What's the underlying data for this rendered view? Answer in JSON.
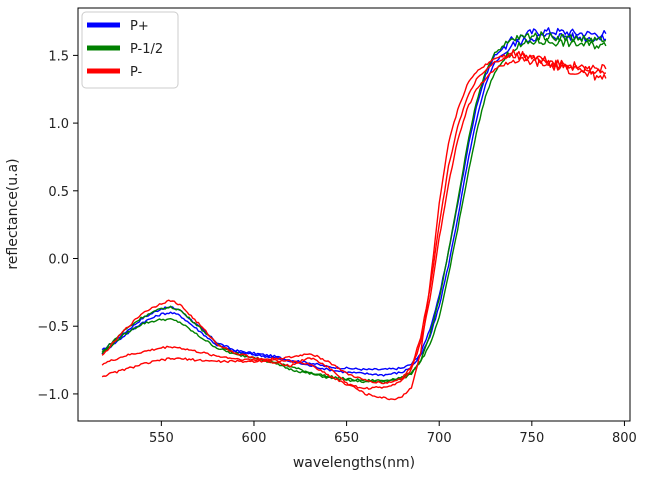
{
  "chart_data": {
    "type": "line",
    "title": "",
    "xlabel": "wavelengths(nm)",
    "ylabel": "reflectance(u.a)",
    "xlim": [
      505,
      803
    ],
    "ylim": [
      -1.2,
      1.85
    ],
    "xticks": [
      550,
      600,
      650,
      700,
      750,
      800
    ],
    "yticks": [
      -1.0,
      -0.5,
      0.0,
      0.5,
      1.0,
      1.5
    ],
    "grid": false,
    "legend_position": "top-left",
    "legend": [
      {
        "name": "P+",
        "color": "#0000ff"
      },
      {
        "name": "P-1/2",
        "color": "#008000"
      },
      {
        "name": "P-",
        "color": "#ff0000"
      }
    ],
    "series": [
      {
        "name": "P+",
        "color": "#0000ff",
        "x": [
          518,
          530,
          540,
          550,
          555,
          560,
          570,
          580,
          590,
          600,
          610,
          620,
          630,
          640,
          650,
          660,
          670,
          680,
          685,
          690,
          695,
          700,
          705,
          710,
          715,
          720,
          725,
          730,
          740,
          750,
          760,
          770,
          780,
          790
        ],
        "y": [
          -0.68,
          -0.55,
          -0.44,
          -0.37,
          -0.36,
          -0.38,
          -0.5,
          -0.62,
          -0.68,
          -0.7,
          -0.72,
          -0.75,
          -0.77,
          -0.8,
          -0.81,
          -0.82,
          -0.82,
          -0.81,
          -0.78,
          -0.7,
          -0.52,
          -0.28,
          0.05,
          0.4,
          0.78,
          1.12,
          1.35,
          1.5,
          1.62,
          1.67,
          1.68,
          1.67,
          1.66,
          1.66
        ]
      },
      {
        "name": "P+",
        "color": "#0000ff",
        "x": [
          518,
          530,
          540,
          550,
          555,
          560,
          570,
          580,
          590,
          600,
          610,
          620,
          630,
          640,
          650,
          660,
          670,
          680,
          685,
          690,
          695,
          700,
          705,
          710,
          715,
          720,
          725,
          730,
          740,
          750,
          760,
          770,
          780,
          790
        ],
        "y": [
          -0.7,
          -0.57,
          -0.47,
          -0.41,
          -0.4,
          -0.42,
          -0.53,
          -0.64,
          -0.69,
          -0.71,
          -0.73,
          -0.76,
          -0.79,
          -0.82,
          -0.84,
          -0.85,
          -0.86,
          -0.84,
          -0.8,
          -0.72,
          -0.58,
          -0.35,
          -0.05,
          0.3,
          0.68,
          1.02,
          1.28,
          1.45,
          1.58,
          1.63,
          1.65,
          1.64,
          1.63,
          1.62
        ]
      },
      {
        "name": "P-1/2",
        "color": "#008000",
        "x": [
          518,
          530,
          540,
          550,
          555,
          560,
          570,
          580,
          590,
          600,
          610,
          620,
          630,
          640,
          650,
          660,
          670,
          680,
          685,
          690,
          695,
          700,
          705,
          710,
          715,
          720,
          725,
          730,
          740,
          750,
          760,
          770,
          780,
          790
        ],
        "y": [
          -0.7,
          -0.56,
          -0.48,
          -0.45,
          -0.45,
          -0.47,
          -0.57,
          -0.66,
          -0.71,
          -0.73,
          -0.76,
          -0.8,
          -0.84,
          -0.87,
          -0.89,
          -0.9,
          -0.9,
          -0.88,
          -0.84,
          -0.76,
          -0.64,
          -0.44,
          -0.12,
          0.22,
          0.58,
          0.92,
          1.2,
          1.38,
          1.55,
          1.6,
          1.6,
          1.59,
          1.58,
          1.57
        ]
      },
      {
        "name": "P-1/2",
        "color": "#008000",
        "x": [
          518,
          530,
          540,
          550,
          555,
          560,
          570,
          580,
          590,
          600,
          610,
          620,
          630,
          640,
          650,
          660,
          670,
          680,
          685,
          690,
          695,
          700,
          705,
          710,
          715,
          720,
          725,
          730,
          740,
          750,
          760,
          770,
          780,
          790
        ],
        "y": [
          -0.69,
          -0.53,
          -0.43,
          -0.37,
          -0.36,
          -0.38,
          -0.5,
          -0.63,
          -0.7,
          -0.73,
          -0.77,
          -0.82,
          -0.85,
          -0.88,
          -0.9,
          -0.91,
          -0.91,
          -0.89,
          -0.85,
          -0.75,
          -0.56,
          -0.3,
          0.05,
          0.42,
          0.82,
          1.15,
          1.38,
          1.52,
          1.62,
          1.65,
          1.64,
          1.63,
          1.62,
          1.61
        ]
      },
      {
        "name": "P-",
        "color": "#ff0000",
        "x": [
          518,
          530,
          540,
          550,
          555,
          560,
          570,
          580,
          590,
          600,
          610,
          620,
          630,
          640,
          650,
          660,
          670,
          675,
          680,
          685,
          690,
          695,
          700,
          705,
          710,
          715,
          720,
          730,
          740,
          750,
          760,
          770,
          780,
          790
        ],
        "y": [
          -0.72,
          -0.53,
          -0.4,
          -0.33,
          -0.31,
          -0.34,
          -0.48,
          -0.63,
          -0.7,
          -0.73,
          -0.77,
          -0.79,
          -0.73,
          -0.8,
          -0.92,
          -1.0,
          -1.03,
          -1.04,
          -1.02,
          -0.95,
          -0.7,
          -0.2,
          0.4,
          0.85,
          1.1,
          1.28,
          1.38,
          1.48,
          1.52,
          1.5,
          1.46,
          1.43,
          1.41,
          1.4
        ]
      },
      {
        "name": "P-",
        "color": "#ff0000",
        "x": [
          518,
          530,
          540,
          550,
          555,
          560,
          570,
          580,
          590,
          600,
          610,
          620,
          630,
          640,
          650,
          660,
          670,
          675,
          680,
          685,
          690,
          695,
          700,
          705,
          710,
          715,
          720,
          730,
          740,
          750,
          760,
          770,
          780,
          790
        ],
        "y": [
          -0.78,
          -0.72,
          -0.69,
          -0.66,
          -0.65,
          -0.66,
          -0.69,
          -0.72,
          -0.74,
          -0.75,
          -0.74,
          -0.73,
          -0.7,
          -0.76,
          -0.85,
          -0.9,
          -0.92,
          -0.91,
          -0.88,
          -0.8,
          -0.58,
          -0.22,
          0.25,
          0.68,
          0.98,
          1.18,
          1.32,
          1.45,
          1.5,
          1.48,
          1.44,
          1.42,
          1.39,
          1.37
        ]
      },
      {
        "name": "P-",
        "color": "#ff0000",
        "x": [
          518,
          530,
          540,
          550,
          555,
          560,
          570,
          580,
          590,
          600,
          610,
          620,
          630,
          640,
          650,
          660,
          670,
          675,
          680,
          685,
          690,
          695,
          700,
          705,
          710,
          715,
          720,
          730,
          740,
          750,
          760,
          770,
          780,
          790
        ],
        "y": [
          -0.87,
          -0.82,
          -0.78,
          -0.75,
          -0.74,
          -0.74,
          -0.75,
          -0.76,
          -0.76,
          -0.76,
          -0.75,
          -0.76,
          -0.78,
          -0.86,
          -0.93,
          -0.96,
          -0.95,
          -0.93,
          -0.9,
          -0.82,
          -0.62,
          -0.3,
          0.15,
          0.55,
          0.88,
          1.1,
          1.25,
          1.4,
          1.46,
          1.45,
          1.42,
          1.39,
          1.36,
          1.33
        ]
      }
    ]
  }
}
